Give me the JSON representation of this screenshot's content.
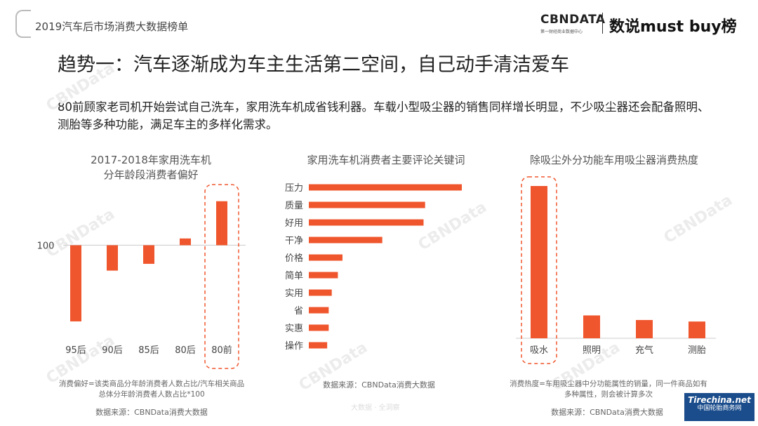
{
  "header": {
    "title": "2019汽车后市场消费大数据榜单"
  },
  "logo": {
    "main": "CBNDATA",
    "sub": "第一财经商业数据中心",
    "right": "数说must buy榜"
  },
  "main_title": "趋势一：汽车逐渐成为车主生活第二空间，自己动手清洁爱车",
  "description": "80前顾家老司机开始尝试自己洗车，家用洗车机成省钱利器。车载小型吸尘器的销售同样增长明显，不少吸尘器还会配备照明、测胎等多种功能，满足车主的多样化需求。",
  "colors": {
    "bar": "#f0562d",
    "highlight_border": "#f0562d"
  },
  "chart_data": [
    {
      "type": "bar",
      "title": "2017-2018年家用洗车机",
      "subtitle": "分年龄段消费者偏好",
      "baseline": 100,
      "baseline_label": "100",
      "categories": [
        "95后",
        "90后",
        "85后",
        "80后",
        "80前"
      ],
      "values": [
        55,
        85,
        89,
        104,
        126
      ],
      "ylim": [
        50,
        135
      ],
      "highlight": "80前",
      "note": "消费偏好=该类商品分年龄消费者人数占比/汽车相关商品总体分年龄消费者人数占比*100",
      "source": "数据来源：CBNData消费大数据"
    },
    {
      "type": "bar",
      "orientation": "horizontal",
      "title": "家用洗车机消费者主要评论关键词",
      "categories": [
        "压力",
        "质量",
        "好用",
        "干净",
        "价格",
        "简单",
        "实用",
        "省",
        "实惠",
        "操作"
      ],
      "values": [
        100,
        76,
        75,
        48,
        22,
        19,
        15,
        13,
        13,
        12
      ],
      "source": "数据来源：CBNData消费大数据"
    },
    {
      "type": "bar",
      "title": "除吸尘外分功能车用吸尘器消费热度",
      "categories": [
        "吸水",
        "照明",
        "充气",
        "测胎"
      ],
      "values": [
        100,
        15,
        12,
        11
      ],
      "highlight": "吸水",
      "note": "消费热度=车用吸尘器中分功能属性的销量，同一件商品如有多种属性，则会被计算多次",
      "source": "数据来源：CBNData消费大数据"
    }
  ],
  "watermark": "CBNData",
  "footer_watermark": "大数据 · 全洞察",
  "badge": {
    "name": "Tirechina.net",
    "caption": "中国轮胎商务网"
  }
}
